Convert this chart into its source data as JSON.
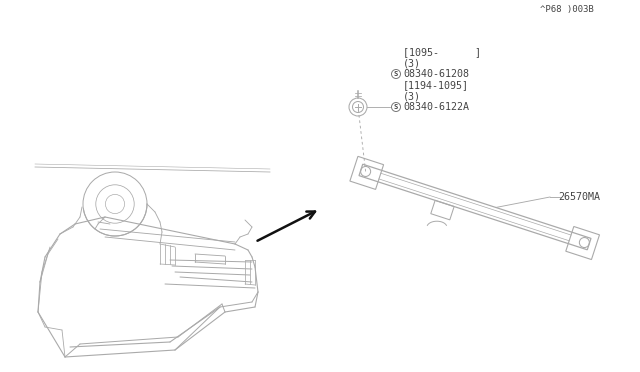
{
  "bg_color": "#ffffff",
  "line_color": "#aaaaaa",
  "dark_line": "#111111",
  "medium_line": "#777777",
  "text_color": "#444444",
  "part_number_lamp": "26570MA",
  "part_number_screw1": "08340-6122A",
  "part_note1a": "(3)",
  "part_note1b": "[1194-1095]",
  "part_number_screw2": "08340-61208",
  "part_note2a": "(3)",
  "part_note2b": "[1095-      ]",
  "diagram_code": "^P68 )003B"
}
